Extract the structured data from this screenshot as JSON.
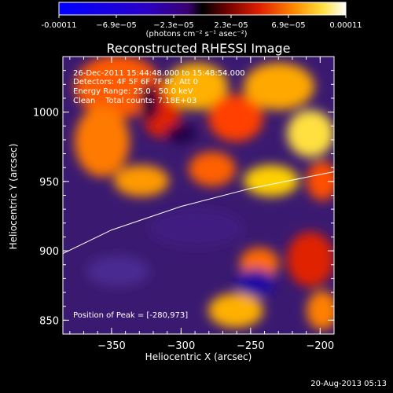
{
  "colorbar": {
    "ticks": [
      "-0.00011",
      "−6.9e−05",
      "−2.3e−05",
      "2.3e−05",
      "6.9e−05",
      "0.00011"
    ],
    "title": "(photons cm⁻² s⁻¹ asec⁻²)"
  },
  "header": {
    "title": "Reconstructed RHESSI Image",
    "time_range": "26-Dec-2011 15:44:48.000 to 15:48:54.000",
    "detectors": "Detectors: 4F 5F 6F 7F 8F, Att 0",
    "energy": "Energy Range: 25.0 - 50.0 keV",
    "clean": "Clean    Total counts: 7.18E+03"
  },
  "peak_label": "Position of Peak = [-280,973]",
  "footer": {
    "timestamp": "20-Aug-2013 05:13"
  },
  "chart_data": {
    "type": "heatmap",
    "title": "Reconstructed RHESSI Image",
    "xlabel": "Heliocentric X (arcsec)",
    "ylabel": "Heliocentric Y (arcsec)",
    "xlim": [
      -385,
      -190
    ],
    "ylim": [
      840,
      1040
    ],
    "x_ticks": [
      -350,
      -300,
      -250,
      -200
    ],
    "x_tick_labels": [
      "−350",
      "−300",
      "−250",
      "−200"
    ],
    "y_ticks": [
      850,
      900,
      950,
      1000
    ],
    "y_tick_labels": [
      "850",
      "900",
      "950",
      "1000"
    ],
    "colorbar_range": [
      -0.00011,
      0.00011
    ],
    "limb_curve": {
      "x": [
        -385,
        -350,
        -300,
        -250,
        -200,
        -190
      ],
      "y": [
        898,
        915,
        932,
        945,
        955,
        957
      ]
    },
    "peak_position": [
      -280,
      973
    ]
  },
  "colors": {
    "background": "#000000",
    "text": "#ffffff"
  }
}
